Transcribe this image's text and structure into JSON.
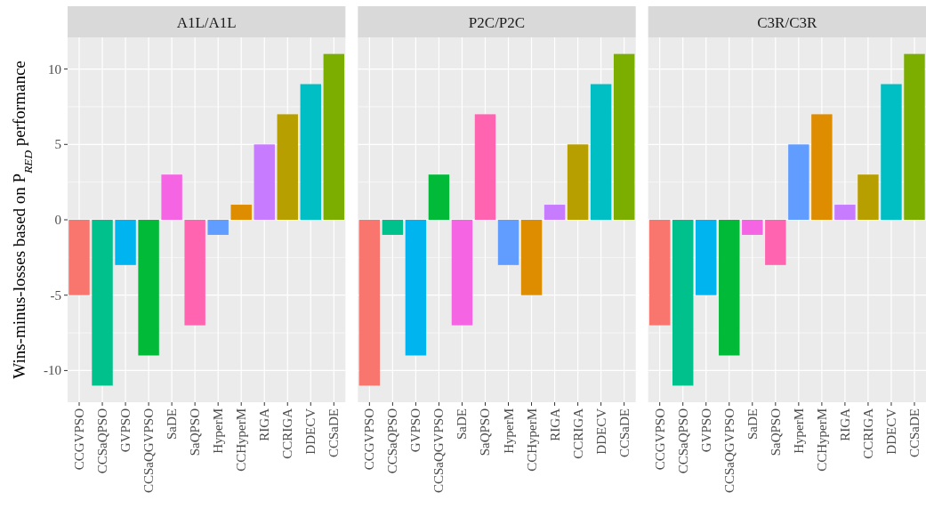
{
  "chart_data": [
    {
      "type": "bar",
      "title": "A1L/A1L",
      "ylabel": "Wins-minus-losses based on P$_{RED}$ performance",
      "categories": [
        "CCGVPSO",
        "CCSaQPSO",
        "GVPSO",
        "CCSaQGVPSO",
        "SaDE",
        "SaQPSO",
        "HyperM",
        "CCHyperM",
        "RIGA",
        "CCRIGA",
        "DDECV",
        "CCSaDE"
      ],
      "values": [
        -5,
        -11,
        -3,
        -9,
        3,
        -7,
        -1,
        1,
        5,
        7,
        9,
        11
      ],
      "colors": [
        "#f8766d",
        "#00c08b",
        "#00b4f0",
        "#00ba38",
        "#f564e3",
        "#ff64b0",
        "#619cff",
        "#de8c00",
        "#c77cff",
        "#b79f00",
        "#00bfc4",
        "#7cae00"
      ],
      "ylim": [
        -12.1,
        12.1
      ],
      "yticks": [
        -10,
        -5,
        0,
        5,
        10
      ],
      "grid": true
    },
    {
      "type": "bar",
      "title": "P2C/P2C",
      "categories": [
        "CCGVPSO",
        "CCSaQPSO",
        "GVPSO",
        "CCSaQGVPSO",
        "SaDE",
        "SaQPSO",
        "HyperM",
        "CCHyperM",
        "RIGA",
        "CCRIGA",
        "DDECV",
        "CCSaDE"
      ],
      "values": [
        -11,
        -1,
        -9,
        3,
        -7,
        7,
        -3,
        -5,
        1,
        5,
        9,
        11
      ],
      "colors": [
        "#f8766d",
        "#00c08b",
        "#00b4f0",
        "#00ba38",
        "#f564e3",
        "#ff64b0",
        "#619cff",
        "#de8c00",
        "#c77cff",
        "#b79f00",
        "#00bfc4",
        "#7cae00"
      ],
      "ylim": [
        -12.1,
        12.1
      ],
      "yticks": [
        -10,
        -5,
        0,
        5,
        10
      ],
      "grid": true,
      "tick_labels": "x"
    },
    {
      "type": "bar",
      "title": "C3R/C3R",
      "categories": [
        "CCGVPSO",
        "CCSaQPSO",
        "GVPSO",
        "CCSaQGVPSO",
        "SaDE",
        "SaQPSO",
        "HyperM",
        "CCHyperM",
        "RIGA",
        "CCRIGA",
        "DDECV",
        "CCSaDE"
      ],
      "values": [
        -7,
        -11,
        -5,
        -9,
        -1,
        -3,
        5,
        7,
        1,
        3,
        9,
        11
      ],
      "colors": [
        "#f8766d",
        "#00c08b",
        "#00b4f0",
        "#00ba38",
        "#f564e3",
        "#ff64b0",
        "#619cff",
        "#de8c00",
        "#c77cff",
        "#b79f00",
        "#00bfc4",
        "#7cae00"
      ],
      "ylim": [
        -12.1,
        12.1
      ],
      "yticks": [
        -10,
        -5,
        0,
        5,
        10
      ],
      "grid": true,
      "tick_labels": "x"
    }
  ]
}
